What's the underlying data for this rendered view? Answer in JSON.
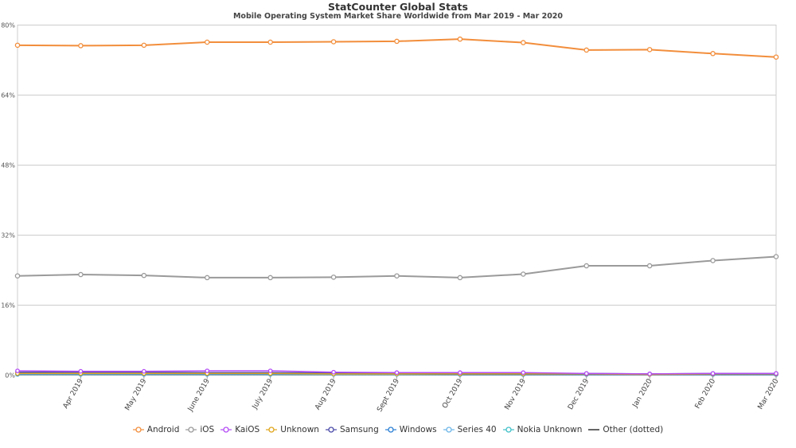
{
  "chart_data": {
    "type": "line",
    "title": "StatCounter Global Stats",
    "subtitle": "Mobile Operating System Market Share Worldwide from Mar 2019 - Mar 2020",
    "categories": [
      "Mar 2019",
      "Apr 2019",
      "May 2019",
      "June 2019",
      "July 2019",
      "Aug 2019",
      "Sept 2019",
      "Oct 2019",
      "Nov 2019",
      "Dec 2019",
      "Jan 2020",
      "Feb 2020",
      "Mar 2020"
    ],
    "x_tick_labels": [
      "Apr 2019",
      "May 2019",
      "June 2019",
      "July 2019",
      "Aug 2019",
      "Sept 2019",
      "Oct 2019",
      "Nov 2019",
      "Dec 2019",
      "Jan 2020",
      "Feb 2020",
      "Mar 2020"
    ],
    "y_ticks": [
      0,
      16,
      32,
      48,
      64,
      80
    ],
    "y_tick_labels": [
      "0%",
      "16%",
      "32%",
      "48%",
      "64%",
      "80%"
    ],
    "ylim": [
      0,
      80
    ],
    "grid": true,
    "legend_position": "bottom",
    "series": [
      {
        "name": "Android",
        "color": "#f28e3c",
        "values": [
          75.3,
          75.2,
          75.3,
          76.0,
          76.0,
          76.1,
          76.2,
          76.7,
          75.9,
          74.2,
          74.3,
          73.4,
          72.6
        ]
      },
      {
        "name": "iOS",
        "color": "#9a9a9a",
        "values": [
          22.6,
          22.9,
          22.7,
          22.2,
          22.2,
          22.3,
          22.6,
          22.2,
          23.0,
          24.9,
          24.9,
          26.1,
          27.0
        ]
      },
      {
        "name": "KaiOS",
        "color": "#b44bf5",
        "values": [
          0.9,
          0.8,
          0.8,
          0.9,
          0.9,
          0.6,
          0.5,
          0.5,
          0.5,
          0.3,
          0.2,
          0.3,
          0.3
        ]
      },
      {
        "name": "Unknown",
        "color": "#e0a51a",
        "values": [
          0.3,
          0.3,
          0.3,
          0.3,
          0.3,
          0.2,
          0.2,
          0.2,
          0.2,
          0.2,
          0.1,
          0.2,
          0.2
        ]
      },
      {
        "name": "Samsung",
        "color": "#4a4aa8",
        "values": [
          0.6,
          0.6,
          0.6,
          0.5,
          0.5,
          0.4,
          0.4,
          0.4,
          0.3,
          0.3,
          0.2,
          0.3,
          0.3
        ]
      },
      {
        "name": "Windows",
        "color": "#2a7fd4",
        "values": [
          0.2,
          0.2,
          0.2,
          0.2,
          0.2,
          0.2,
          0.2,
          0.1,
          0.1,
          0.1,
          0.1,
          0.1,
          0.1
        ]
      },
      {
        "name": "Series 40",
        "color": "#6cb6e8",
        "values": [
          0.1,
          0.1,
          0.1,
          0.1,
          0.1,
          0.1,
          0.1,
          0.1,
          0.1,
          0.1,
          0.1,
          0.1,
          0.1
        ]
      },
      {
        "name": "Nokia Unknown",
        "color": "#3fc0c8",
        "values": [
          0.1,
          0.1,
          0.1,
          0.1,
          0.1,
          0.1,
          0.1,
          0.1,
          0.1,
          0.1,
          0.1,
          0.1,
          0.1
        ]
      },
      {
        "name": "Other (dotted)",
        "color": "#666666",
        "values": [
          0.1,
          0.1,
          0.1,
          0.1,
          0.1,
          0.1,
          0.1,
          0.1,
          0.1,
          0.1,
          0.1,
          0.1,
          0.1
        ],
        "line_only": true
      }
    ]
  }
}
